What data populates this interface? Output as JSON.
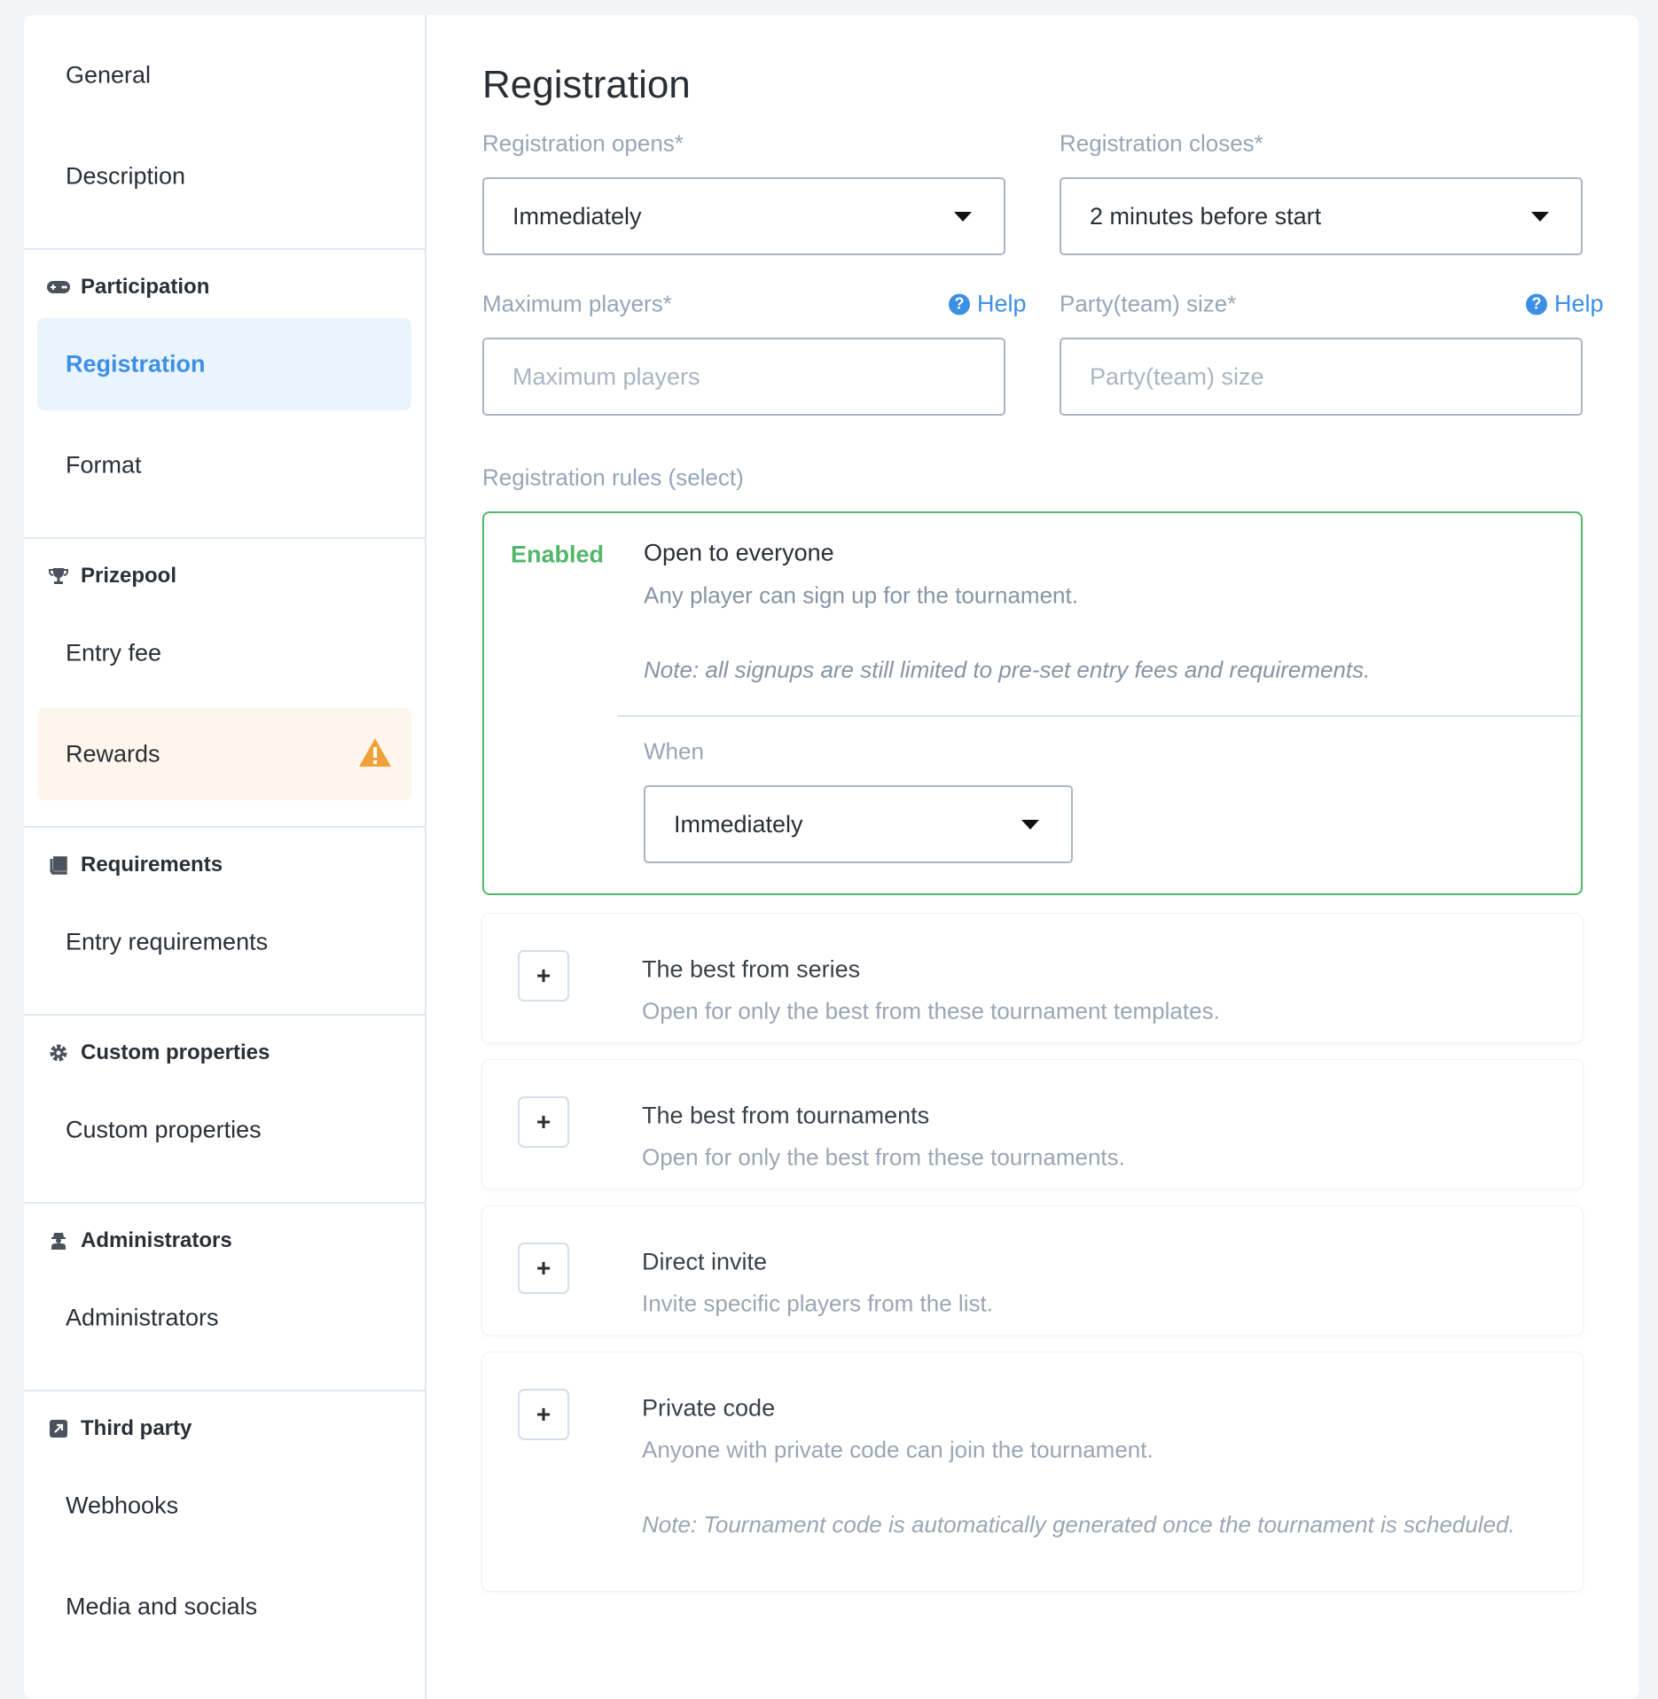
{
  "sidebar": {
    "top_items": [
      "General",
      "Description"
    ],
    "groups": [
      {
        "title": "Participation",
        "icon": "gamepad-icon",
        "items": [
          "Registration",
          "Format"
        ]
      },
      {
        "title": "Prizepool",
        "icon": "trophy-icon",
        "items": [
          "Entry fee",
          "Rewards"
        ]
      },
      {
        "title": "Requirements",
        "icon": "book-icon",
        "items": [
          "Entry requirements"
        ]
      },
      {
        "title": "Custom properties",
        "icon": "gear-icon",
        "items": [
          "Custom properties"
        ]
      },
      {
        "title": "Administrators",
        "icon": "user-secret-icon",
        "items": [
          "Administrators"
        ]
      },
      {
        "title": "Third party",
        "icon": "external-link-icon",
        "items": [
          "Webhooks",
          "Media and socials"
        ]
      }
    ],
    "active_item": "Registration",
    "warning_item": "Rewards"
  },
  "main": {
    "title": "Registration",
    "opens": {
      "label": "Registration opens*",
      "value": "Immediately"
    },
    "closes": {
      "label": "Registration closes*",
      "value": "2 minutes before start"
    },
    "max_players": {
      "label": "Maximum players*",
      "placeholder": "Maximum players",
      "help": "Help"
    },
    "party_size": {
      "label": "Party(team) size*",
      "placeholder": "Party(team) size",
      "help": "Help"
    },
    "rules_label": "Registration rules (select)",
    "rules": [
      {
        "status": "Enabled",
        "title": "Open to everyone",
        "desc": "Any player can sign up for the tournament.",
        "note": "Note: all signups are still limited to pre-set entry fees and requirements.",
        "when_label": "When",
        "when_value": "Immediately"
      },
      {
        "title": "The best from series",
        "desc": "Open for only the best from these tournament templates."
      },
      {
        "title": "The best from tournaments",
        "desc": "Open for only the best from these tournaments."
      },
      {
        "title": "Direct invite",
        "desc": "Invite specific players from the list."
      },
      {
        "title": "Private code",
        "desc": "Anyone with private code can join the tournament.",
        "note": "Note: Tournament code is automatically generated once the tournament is scheduled."
      }
    ]
  },
  "colors": {
    "accent": "#3d8fe6",
    "enabled": "#52b66c",
    "warning": "#f0a23a",
    "active_bg": "#eaf4fd",
    "warning_bg": "#fef5ec"
  }
}
